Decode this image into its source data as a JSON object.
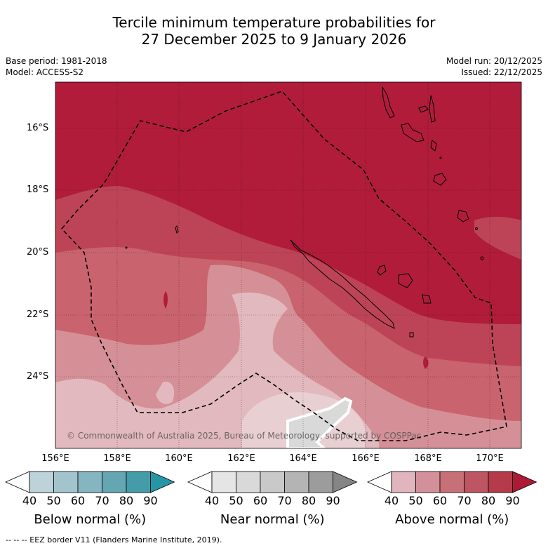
{
  "header": {
    "title_line1": "Tercile minimum temperature probabilities for",
    "title_line2": "27 December 2025 to 9 January 2026",
    "base_period": "Base period: 1981-2018",
    "model": "Model: ACCESS-S2",
    "model_run": "Model run: 20/12/2025",
    "issued": "Issued: 22/12/2025"
  },
  "map": {
    "lat_labels": [
      "16°S",
      "18°S",
      "20°S",
      "22°S",
      "24°S"
    ],
    "lon_labels": [
      "156°E",
      "158°E",
      "160°E",
      "162°E",
      "164°E",
      "166°E",
      "168°E",
      "170°E"
    ],
    "copyright": "© Commonwealth of Australia 2025, Bureau of Meteorology, supported by COSPPac"
  },
  "colorbars": [
    {
      "caption": "Below normal (%)",
      "ticks": [
        "40",
        "50",
        "60",
        "70",
        "80",
        "90"
      ],
      "colors": [
        "#ffffff",
        "#bdd3d9",
        "#a3c4cc",
        "#85b5c0",
        "#65a6b3",
        "#449ca8",
        "#2596a6"
      ]
    },
    {
      "caption": "Near normal (%)",
      "ticks": [
        "40",
        "50",
        "60",
        "70",
        "80",
        "90"
      ],
      "colors": [
        "#ffffff",
        "#e5e5e5",
        "#d9d9d9",
        "#c9c9c9",
        "#b4b4b4",
        "#9c9c9c",
        "#858585"
      ]
    },
    {
      "caption": "Above normal (%)",
      "ticks": [
        "40",
        "50",
        "60",
        "70",
        "80",
        "90"
      ],
      "colors": [
        "#ffffff",
        "#e0b5bd",
        "#d3909a",
        "#c87078",
        "#bd5562",
        "#b53a4a",
        "#ad1a36"
      ]
    }
  ],
  "footer": {
    "eez_note": "--  --  -- EEZ border V11 (Flanders Marine Institute, 2019)."
  }
}
